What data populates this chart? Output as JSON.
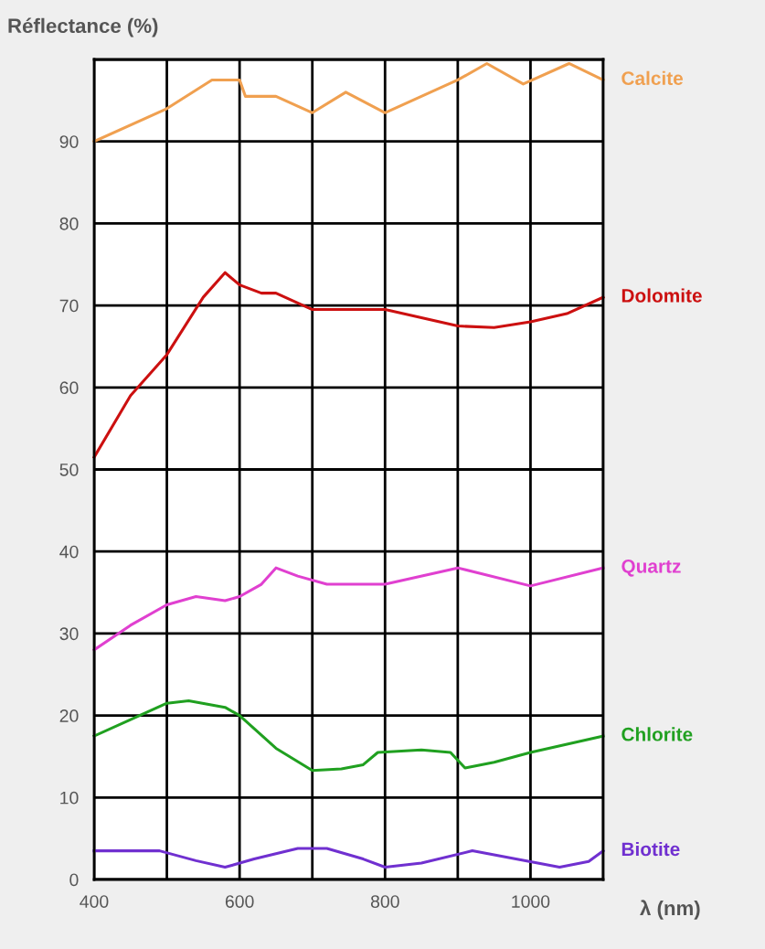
{
  "chart_data": {
    "type": "line",
    "ylabel": "Réflectance (%)",
    "xlabel": "λ (nm)",
    "xlim": [
      400,
      1100
    ],
    "ylim": [
      0,
      100
    ],
    "xticks": [
      400,
      {
        "value": 500,
        "label": null
      },
      600,
      {
        "value": 700,
        "label": null
      },
      800,
      {
        "value": 900,
        "label": null
      },
      1000,
      {
        "value": 1100,
        "label": null
      }
    ],
    "yticks": [
      0,
      10,
      20,
      30,
      40,
      50,
      60,
      70,
      80,
      90,
      {
        "value": 100,
        "label": null
      }
    ],
    "grid": true,
    "legend": false,
    "series": [
      {
        "name": "Calcite",
        "color": "#f0a050",
        "x": [
          400,
          500,
          562,
          600,
          608,
          650,
          700,
          746,
          800,
          900,
          940,
          990,
          1053,
          1100
        ],
        "values": [
          90,
          94,
          97.5,
          97.5,
          95.5,
          95.5,
          93.5,
          96,
          93.5,
          97.5,
          99.5,
          97,
          99.5,
          97.5
        ]
      },
      {
        "name": "Dolomite",
        "color": "#cc1010",
        "x": [
          400,
          450,
          500,
          550,
          580,
          600,
          630,
          650,
          700,
          800,
          900,
          950,
          1000,
          1050,
          1100
        ],
        "values": [
          51.5,
          59,
          64,
          71,
          74,
          72.5,
          71.5,
          71.5,
          69.5,
          69.5,
          67.5,
          67.3,
          68,
          69,
          71
        ]
      },
      {
        "name": "Quartz",
        "color": "#e040d0",
        "x": [
          400,
          450,
          500,
          540,
          580,
          600,
          630,
          650,
          680,
          720,
          800,
          900,
          1000,
          1100
        ],
        "values": [
          28,
          31,
          33.5,
          34.5,
          34,
          34.5,
          36,
          38,
          37,
          36,
          36,
          38,
          35.8,
          38
        ]
      },
      {
        "name": "Chlorite",
        "color": "#20a020",
        "x": [
          400,
          450,
          500,
          530,
          580,
          600,
          650,
          700,
          740,
          770,
          790,
          850,
          890,
          910,
          950,
          1000,
          1100
        ],
        "values": [
          17.5,
          19.5,
          21.5,
          21.8,
          21,
          20,
          16,
          13.3,
          13.5,
          14,
          15.5,
          15.8,
          15.5,
          13.6,
          14.3,
          15.5,
          17.5
        ]
      },
      {
        "name": "Biotite",
        "color": "#7030d0",
        "x": [
          400,
          490,
          540,
          580,
          620,
          680,
          720,
          770,
          800,
          850,
          920,
          980,
          1040,
          1080,
          1100
        ],
        "values": [
          3.5,
          3.5,
          2.3,
          1.5,
          2.5,
          3.8,
          3.8,
          2.5,
          1.5,
          2,
          3.5,
          2.5,
          1.5,
          2.2,
          3.5
        ]
      }
    ]
  }
}
